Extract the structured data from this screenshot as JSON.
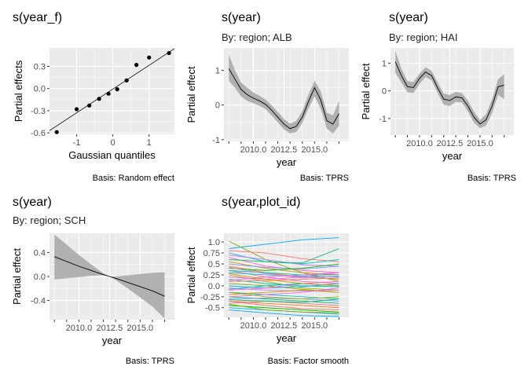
{
  "figure": {
    "background": "#ffffff",
    "panel_background": "#ebebeb",
    "grid_color": "#ffffff",
    "ribbon_color": "#a6a6a6",
    "line_color": "#000000"
  },
  "chart_data": [
    {
      "id": "p1",
      "type": "scatter",
      "title": "s(year_f)",
      "subtitle": "",
      "xlabel": "Gaussian quantiles",
      "ylabel": "Partial effects",
      "caption": "Basis: Random effect",
      "xlim": [
        -1.75,
        1.7
      ],
      "ylim": [
        -0.62,
        0.55
      ],
      "xticks": [
        -1,
        0,
        1
      ],
      "xtick_labels": [
        "-1",
        "0",
        "1"
      ],
      "yticks": [
        -0.6,
        -0.3,
        0.0,
        0.3
      ],
      "ytick_labels": [
        "-0.6",
        "-0.3",
        "0.0",
        "0.3"
      ],
      "points": [
        {
          "x": -1.55,
          "y": -0.59
        },
        {
          "x": -1.0,
          "y": -0.28
        },
        {
          "x": -0.65,
          "y": -0.23
        },
        {
          "x": -0.38,
          "y": -0.14
        },
        {
          "x": -0.12,
          "y": -0.07
        },
        {
          "x": 0.12,
          "y": -0.01
        },
        {
          "x": 0.38,
          "y": 0.11
        },
        {
          "x": 0.65,
          "y": 0.32
        },
        {
          "x": 1.0,
          "y": 0.42
        },
        {
          "x": 1.55,
          "y": 0.48
        }
      ],
      "reference_line": {
        "x": [
          -1.75,
          1.7
        ],
        "y": [
          -0.57,
          0.54
        ]
      }
    },
    {
      "id": "p2",
      "type": "area",
      "title": "s(year)",
      "subtitle": "By: region; ALB",
      "xlabel": "year",
      "ylabel": "Partial effect",
      "caption": "Basis: TPRS",
      "xlim": [
        2007.6,
        2017.8
      ],
      "ylim": [
        -1.05,
        1.65
      ],
      "xticks": [
        2010,
        2012.5,
        2015
      ],
      "xtick_labels": [
        "2010.0",
        "2012.5",
        "2015.0"
      ],
      "xminor": [
        2008.0,
        2009.0,
        2010.0,
        2011.0,
        2012.0,
        2013.0,
        2014.0,
        2015.0,
        2016.0,
        2017.0
      ],
      "yticks": [
        -1,
        0,
        1
      ],
      "ytick_labels": [
        "-1",
        "0",
        "1"
      ],
      "x": [
        2008.0,
        2008.5,
        2009.0,
        2009.5,
        2010.0,
        2010.5,
        2011.0,
        2011.5,
        2012.0,
        2012.5,
        2013.0,
        2013.5,
        2014.0,
        2014.5,
        2015.0,
        2015.5,
        2016.0,
        2016.5,
        2017.0
      ],
      "fit": [
        1.05,
        0.75,
        0.45,
        0.3,
        0.2,
        0.12,
        0.02,
        -0.15,
        -0.35,
        -0.55,
        -0.68,
        -0.62,
        -0.35,
        0.1,
        0.5,
        0.15,
        -0.45,
        -0.55,
        -0.25
      ],
      "lower": [
        0.7,
        0.5,
        0.25,
        0.12,
        0.05,
        -0.02,
        -0.12,
        -0.3,
        -0.5,
        -0.7,
        -0.82,
        -0.78,
        -0.52,
        -0.1,
        0.25,
        -0.1,
        -0.68,
        -0.82,
        -0.6
      ],
      "upper": [
        1.45,
        1.0,
        0.65,
        0.5,
        0.36,
        0.27,
        0.16,
        -0.01,
        -0.2,
        -0.4,
        -0.54,
        -0.46,
        -0.18,
        0.3,
        0.7,
        0.4,
        -0.22,
        -0.3,
        0.12
      ]
    },
    {
      "id": "p3",
      "type": "area",
      "title": "s(year)",
      "subtitle": "By: region; HAI",
      "xlabel": "year",
      "ylabel": "Partial effect",
      "caption": "Basis: TPRS",
      "xlim": [
        2007.6,
        2017.8
      ],
      "ylim": [
        -1.6,
        1.55
      ],
      "xticks": [
        2010,
        2012.5,
        2015
      ],
      "xtick_labels": [
        "2010.0",
        "2012.5",
        "2015.0"
      ],
      "xminor": [
        2008.0,
        2009.0,
        2010.0,
        2011.0,
        2012.0,
        2013.0,
        2014.0,
        2015.0,
        2016.0,
        2017.0
      ],
      "yticks": [
        -1,
        0,
        1
      ],
      "ytick_labels": [
        "-1",
        "0",
        "1"
      ],
      "x": [
        2008.0,
        2008.5,
        2009.0,
        2009.5,
        2010.0,
        2010.5,
        2011.0,
        2011.5,
        2012.0,
        2012.5,
        2013.0,
        2013.5,
        2014.0,
        2014.5,
        2015.0,
        2015.5,
        2016.0,
        2016.5,
        2017.0
      ],
      "fit": [
        1.05,
        0.55,
        0.15,
        0.12,
        0.45,
        0.68,
        0.55,
        0.1,
        -0.3,
        -0.35,
        -0.22,
        -0.25,
        -0.55,
        -0.95,
        -1.2,
        -1.05,
        -0.55,
        0.15,
        0.2
      ],
      "lower": [
        0.65,
        0.3,
        -0.05,
        -0.08,
        0.25,
        0.5,
        0.38,
        -0.08,
        -0.5,
        -0.55,
        -0.4,
        -0.42,
        -0.75,
        -1.15,
        -1.35,
        -1.25,
        -0.8,
        -0.15,
        -0.3
      ],
      "upper": [
        1.45,
        0.8,
        0.35,
        0.32,
        0.62,
        0.85,
        0.72,
        0.3,
        -0.1,
        -0.15,
        -0.04,
        -0.08,
        -0.35,
        -0.75,
        -1.05,
        -0.85,
        -0.3,
        0.42,
        0.6
      ]
    },
    {
      "id": "p4",
      "type": "area",
      "title": "s(year)",
      "subtitle": "By: region; SCH",
      "xlabel": "year",
      "ylabel": "Partial effect",
      "caption": "Basis: TPRS",
      "xlim": [
        2007.6,
        2017.8
      ],
      "ylim": [
        -0.72,
        0.72
      ],
      "xticks": [
        2010,
        2012.5,
        2015
      ],
      "xtick_labels": [
        "2010.0",
        "2012.5",
        "2015.0"
      ],
      "xminor": [
        2008.0,
        2009.0,
        2010.0,
        2011.0,
        2012.0,
        2013.0,
        2014.0,
        2015.0,
        2016.0,
        2017.0
      ],
      "yticks": [
        -0.4,
        0.0,
        0.4
      ],
      "ytick_labels": [
        "-0.4",
        "0.0",
        "0.4"
      ],
      "x": [
        2008.0,
        2010.0,
        2011.0,
        2012.0,
        2012.5,
        2013.0,
        2014.0,
        2015.0,
        2016.0,
        2017.0
      ],
      "fit": [
        0.33,
        0.17,
        0.1,
        0.03,
        0.0,
        -0.03,
        -0.1,
        -0.17,
        -0.24,
        -0.33
      ],
      "lower": [
        -0.05,
        -0.01,
        0.01,
        0.02,
        0.0,
        -0.06,
        -0.2,
        -0.35,
        -0.5,
        -0.7
      ],
      "upper": [
        0.7,
        0.36,
        0.2,
        0.05,
        0.0,
        0.0,
        0.02,
        0.04,
        0.06,
        0.07
      ]
    },
    {
      "id": "p5",
      "type": "line",
      "title": "s(year,plot_id)",
      "subtitle": "",
      "xlabel": "year",
      "ylabel": "Partial effect",
      "caption": "Basis: Factor smooth",
      "xlim": [
        2007.6,
        2017.8
      ],
      "ylim": [
        -0.72,
        1.2
      ],
      "xticks": [
        2010,
        2012.5,
        2015
      ],
      "xtick_labels": [
        "2010.0",
        "2012.5",
        "2015.0"
      ],
      "xminor": [
        2008.0,
        2009.0,
        2010.0,
        2011.0,
        2012.0,
        2013.0,
        2014.0,
        2015.0,
        2016.0,
        2017.0
      ],
      "yticks": [
        -0.5,
        -0.25,
        0.0,
        0.25,
        0.5,
        0.75,
        1.0
      ],
      "ytick_labels": [
        "-0.5",
        "-0.25",
        "0.0",
        "0.25",
        "0.5",
        "0.75",
        "1.0"
      ],
      "x": [
        2008.0,
        2011.0,
        2014.0,
        2017.0
      ],
      "series": [
        {
          "color": "#00a9ff",
          "values": [
            0.85,
            0.95,
            1.05,
            1.1
          ]
        },
        {
          "color": "#7cae00",
          "values": [
            1.02,
            0.6,
            0.3,
            0.1
          ]
        },
        {
          "color": "#f8766d",
          "values": [
            0.8,
            0.75,
            0.62,
            0.55
          ]
        },
        {
          "color": "#00bfc4",
          "values": [
            0.75,
            0.55,
            0.5,
            0.6
          ]
        },
        {
          "color": "#c77cff",
          "values": [
            0.7,
            0.6,
            0.48,
            0.45
          ]
        },
        {
          "color": "#ff61cc",
          "values": [
            0.65,
            0.45,
            0.35,
            0.3
          ]
        },
        {
          "color": "#00be67",
          "values": [
            0.6,
            0.55,
            0.52,
            0.85
          ]
        },
        {
          "color": "#cd9600",
          "values": [
            0.55,
            0.4,
            0.3,
            0.25
          ]
        },
        {
          "color": "#8494ff",
          "values": [
            0.5,
            0.42,
            0.38,
            0.45
          ]
        },
        {
          "color": "#e68613",
          "values": [
            0.45,
            0.3,
            0.2,
            0.15
          ]
        },
        {
          "color": "#0cb702",
          "values": [
            0.4,
            0.35,
            0.4,
            0.5
          ]
        },
        {
          "color": "#ff68a1",
          "values": [
            0.35,
            0.2,
            0.1,
            0.05
          ]
        },
        {
          "color": "#00b8e7",
          "values": [
            0.3,
            0.25,
            0.22,
            0.2
          ]
        },
        {
          "color": "#abab00",
          "values": [
            0.25,
            0.1,
            -0.05,
            -0.1
          ]
        },
        {
          "color": "#ed68ed",
          "values": [
            0.2,
            0.15,
            0.2,
            0.3
          ]
        },
        {
          "color": "#00c19a",
          "values": [
            0.15,
            0.05,
            0.0,
            -0.02
          ]
        },
        {
          "color": "#f8766d",
          "values": [
            0.1,
            0.12,
            0.15,
            0.18
          ]
        },
        {
          "color": "#7cae00",
          "values": [
            0.05,
            0.0,
            -0.08,
            -0.15
          ]
        },
        {
          "color": "#00a9ff",
          "values": [
            0.0,
            -0.05,
            -0.02,
            0.05
          ]
        },
        {
          "color": "#c77cff",
          "values": [
            -0.05,
            -0.1,
            -0.12,
            -0.1
          ]
        },
        {
          "color": "#ff61cc",
          "values": [
            -0.1,
            -0.05,
            0.05,
            0.1
          ]
        },
        {
          "color": "#00bfc4",
          "values": [
            -0.15,
            -0.2,
            -0.25,
            -0.3
          ]
        },
        {
          "color": "#cd9600",
          "values": [
            -0.2,
            -0.15,
            -0.1,
            -0.15
          ]
        },
        {
          "color": "#00be67",
          "values": [
            -0.25,
            -0.3,
            -0.35,
            -0.4
          ]
        },
        {
          "color": "#8494ff",
          "values": [
            -0.3,
            -0.28,
            -0.3,
            -0.35
          ]
        },
        {
          "color": "#e68613",
          "values": [
            -0.35,
            -0.4,
            -0.45,
            -0.5
          ]
        },
        {
          "color": "#ff68a1",
          "values": [
            -0.4,
            -0.35,
            -0.4,
            -0.45
          ]
        },
        {
          "color": "#0cb702",
          "values": [
            -0.45,
            -0.5,
            -0.55,
            -0.6
          ]
        },
        {
          "color": "#00b8e7",
          "values": [
            -0.5,
            -0.55,
            -0.6,
            -0.65
          ]
        },
        {
          "color": "#7cae00",
          "values": [
            -0.42,
            -0.55,
            -0.6,
            -0.62
          ]
        },
        {
          "color": "#f8766d",
          "values": [
            -0.35,
            -0.45,
            -0.52,
            -0.55
          ]
        },
        {
          "color": "#00a9ff",
          "values": [
            -0.55,
            -0.62,
            -0.68,
            -0.7
          ]
        },
        {
          "color": "#ed68ed",
          "values": [
            -0.25,
            -0.2,
            -0.15,
            -0.05
          ]
        },
        {
          "color": "#abab00",
          "values": [
            -0.15,
            -0.25,
            -0.3,
            -0.25
          ]
        },
        {
          "color": "#00c19a",
          "values": [
            0.35,
            0.3,
            0.25,
            0.25
          ]
        },
        {
          "color": "#c77cff",
          "values": [
            0.42,
            0.28,
            0.18,
            0.22
          ]
        },
        {
          "color": "#ff61cc",
          "values": [
            0.12,
            0.2,
            0.25,
            0.3
          ]
        },
        {
          "color": "#00bfc4",
          "values": [
            -0.08,
            0.0,
            0.05,
            0.0
          ]
        },
        {
          "color": "#cd9600",
          "values": [
            0.28,
            0.15,
            0.05,
            0.0
          ]
        },
        {
          "color": "#00be67",
          "values": [
            -0.32,
            -0.35,
            -0.38,
            -0.3
          ]
        }
      ]
    }
  ]
}
